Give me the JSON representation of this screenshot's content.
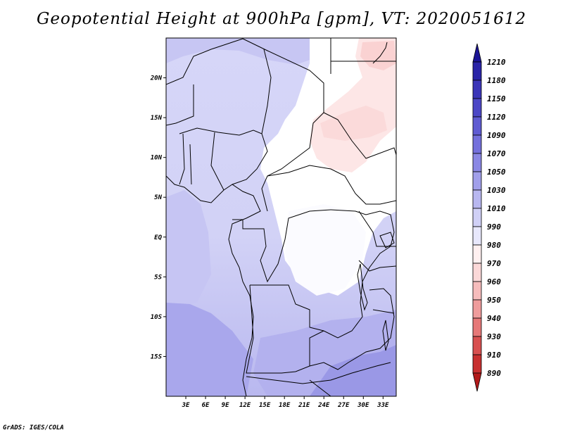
{
  "title": "Geopotential Height at 900hPa [gpm], VT: 2020051612",
  "credit": "GrADS: IGES/COLA",
  "map": {
    "variable": "Geopotential Height",
    "level": "900hPa",
    "units": "gpm",
    "valid_time": "2020051612",
    "lon_range": [
      0,
      35
    ],
    "lat_range": [
      -20,
      25
    ],
    "lon_labels": [
      "3E",
      "6E",
      "9E",
      "12E",
      "15E",
      "18E",
      "21E",
      "24E",
      "27E",
      "30E",
      "33E"
    ],
    "lat_labels": [
      "20N",
      "15N",
      "10N",
      "5N",
      "EQ",
      "5S",
      "10S",
      "15S"
    ]
  },
  "colorbar": {
    "levels": [
      "1210",
      "1180",
      "1150",
      "1120",
      "1090",
      "1070",
      "1050",
      "1030",
      "1010",
      "990",
      "980",
      "970",
      "960",
      "950",
      "940",
      "930",
      "910",
      "890"
    ],
    "colors": [
      "#1b1496",
      "#2a24a8",
      "#3b35b8",
      "#4c47c6",
      "#5f5bd2",
      "#7470dc",
      "#8a87e4",
      "#a19fea",
      "#b8b7f0",
      "#d0d0f6",
      "#e8e8fc",
      "#fff0f0",
      "#fbd8d8",
      "#f6bcbc",
      "#ef9c9c",
      "#e67878",
      "#d85050",
      "#c83030",
      "#b21a1a"
    ]
  }
}
